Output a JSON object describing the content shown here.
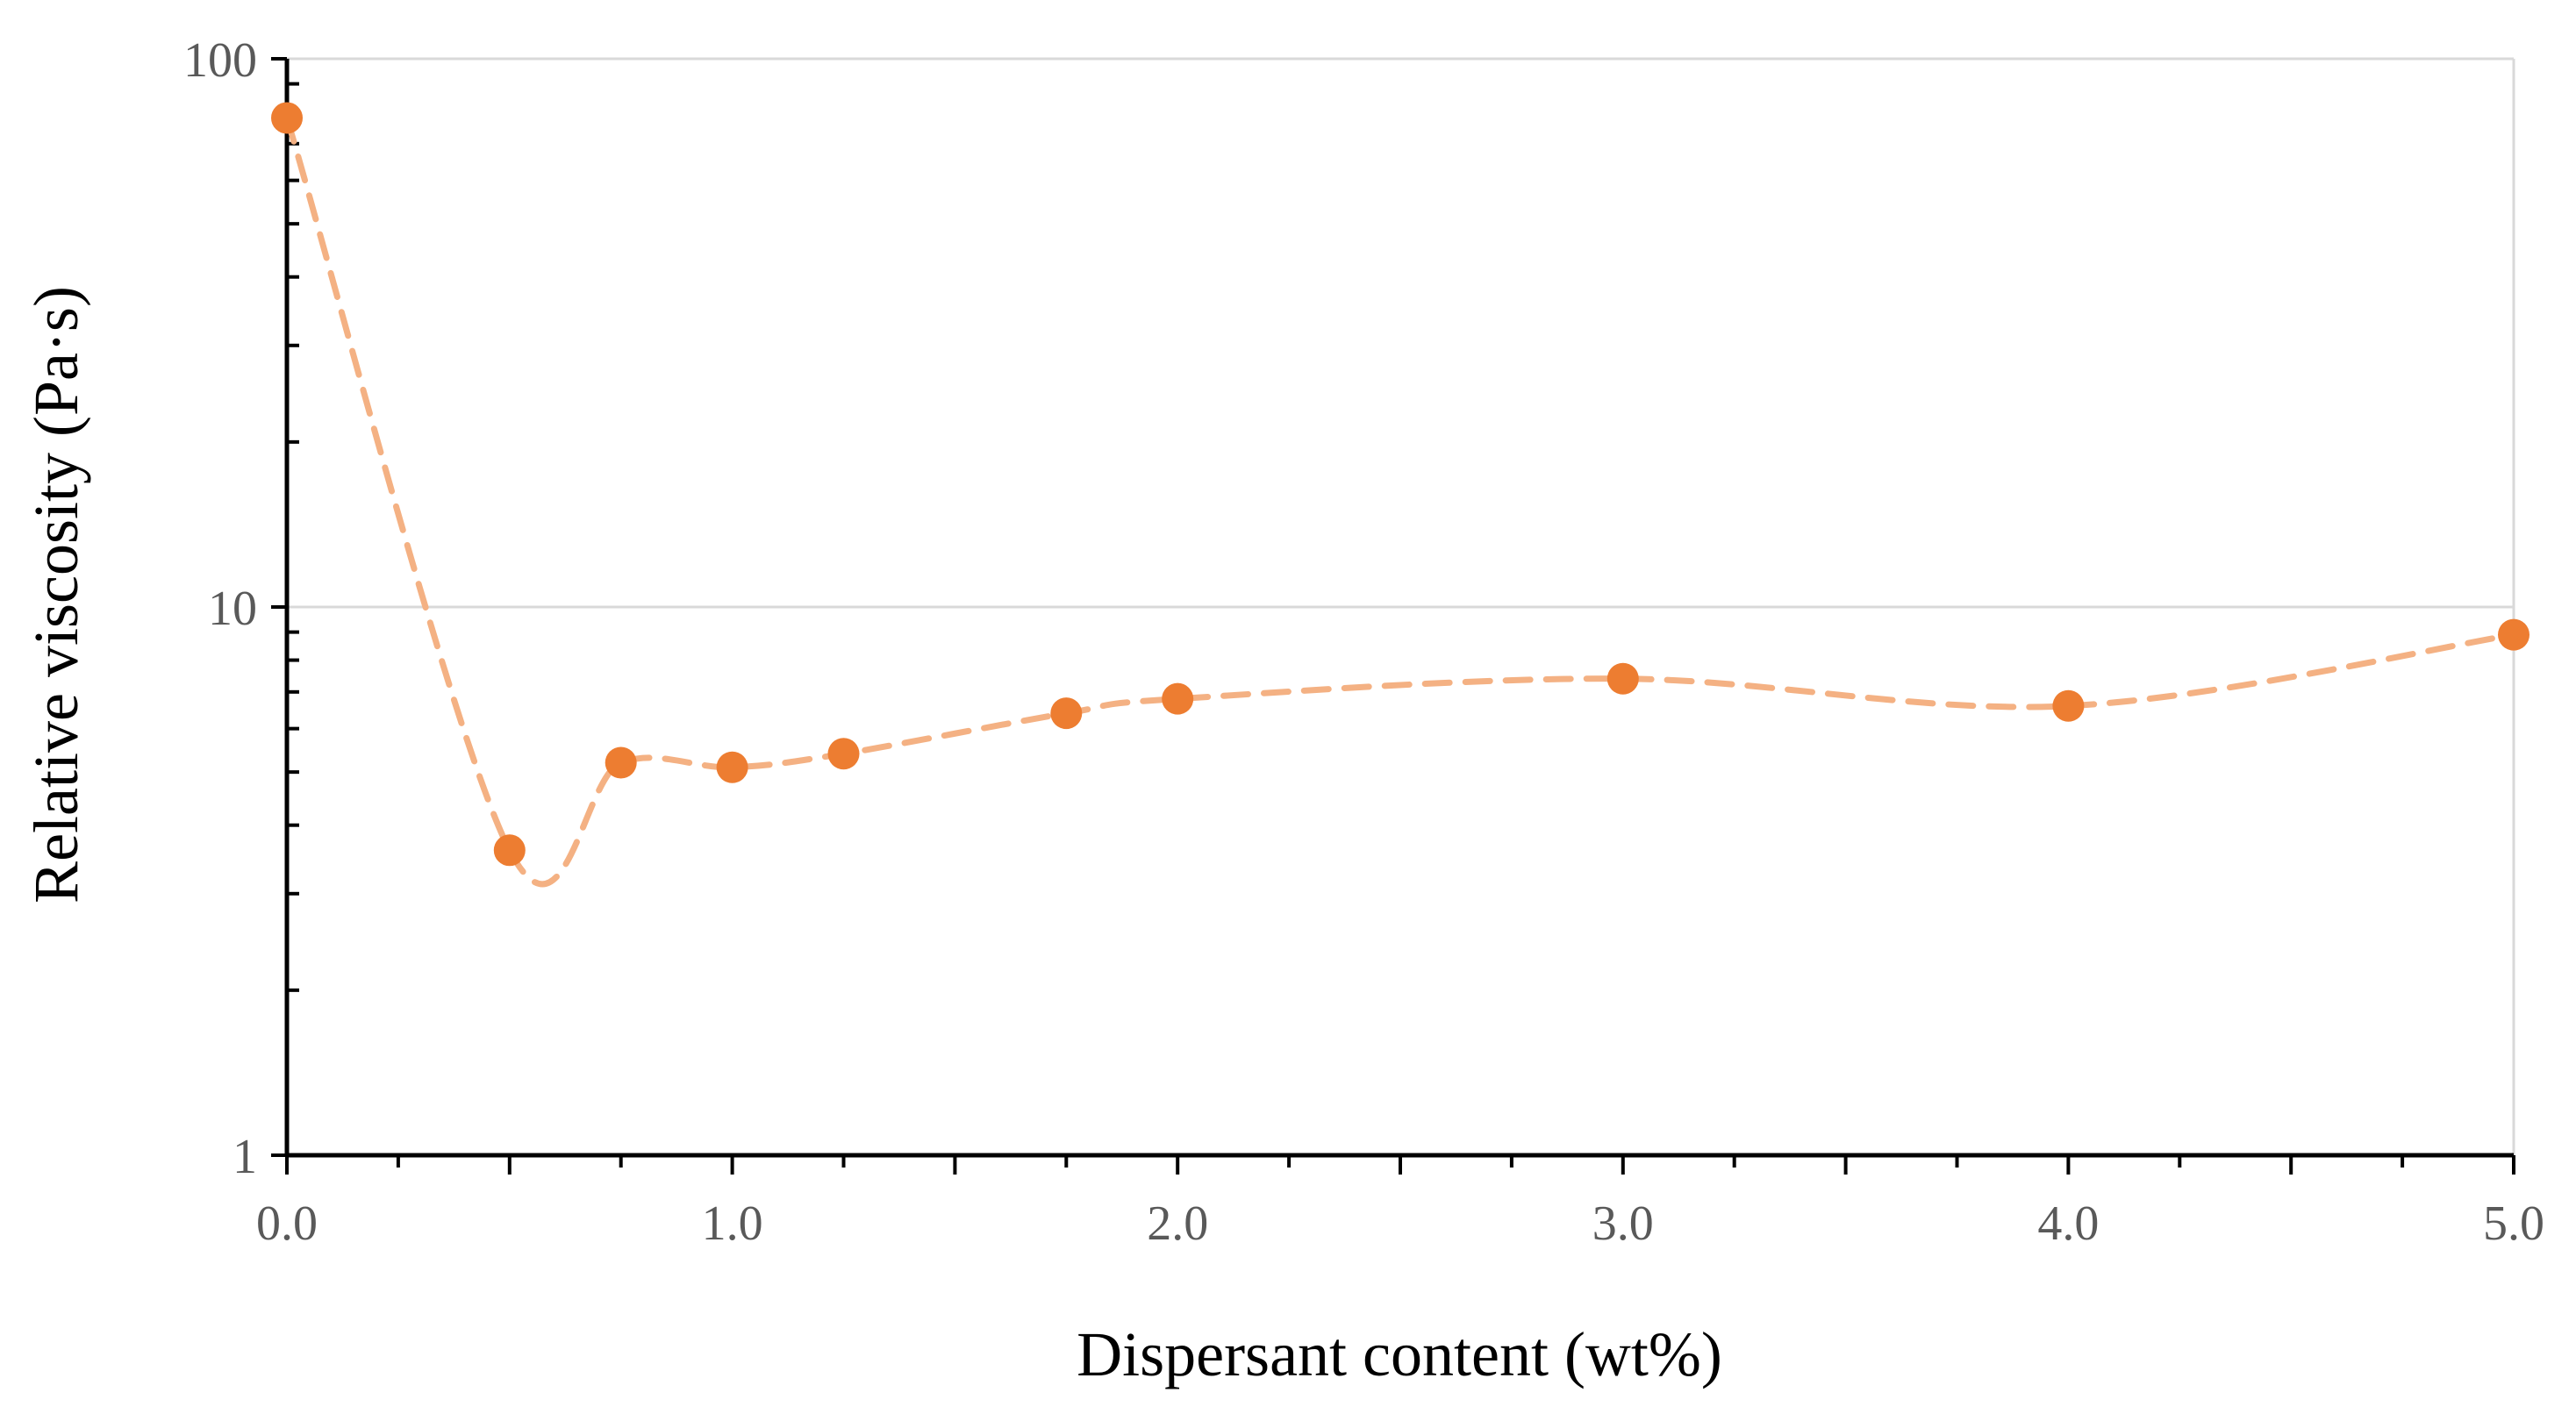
{
  "chart_data": {
    "type": "line",
    "title": "",
    "xlabel": "Dispersant content (wt%)",
    "ylabel": "Relative viscosity (Pa·s)",
    "x_ticks": [
      "0.0",
      "1.0",
      "2.0",
      "3.0",
      "4.0",
      "5.0"
    ],
    "y_ticks": [
      "1",
      "10",
      "100"
    ],
    "xlim": [
      0,
      5
    ],
    "ylim": [
      1,
      100
    ],
    "y_scale": "log",
    "grid": "horizontal major gridlines",
    "legend": "none",
    "series": [
      {
        "x": [
          0.0,
          0.5,
          0.75,
          1.0,
          1.25,
          1.75,
          2.0,
          3.0,
          4.0,
          5.0
        ],
        "y": [
          78,
          3.6,
          5.2,
          5.1,
          5.4,
          6.4,
          6.8,
          7.4,
          6.6,
          8.9
        ],
        "color": "#ED7D31",
        "line_color": "#F4B183",
        "line_style": "dashed",
        "marker": "circle"
      }
    ]
  }
}
